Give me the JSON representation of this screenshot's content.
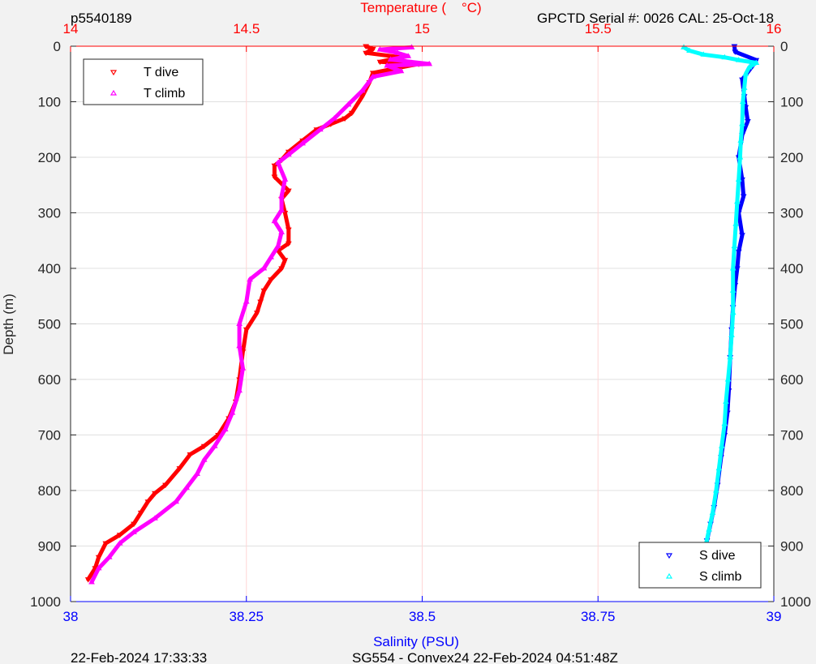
{
  "header": {
    "left_id": "p5540189",
    "top_axis_title": "Temperature (    °C)",
    "right_info": "GPCTD Serial #: 0026 CAL: 25-Oct-18"
  },
  "footer": {
    "bottom_left": "22-Feb-2024 17:33:33",
    "bottom_center": "SG554 - Convex24 22-Feb-2024 04:51:48Z"
  },
  "colors": {
    "temperature_axis": "#ff0000",
    "salinity_axis": "#0000ff",
    "t_dive": "#ff0000",
    "t_climb": "#ff00ff",
    "s_dive": "#0000ff",
    "s_climb": "#00ffff",
    "grid_temp": "#ffd6d6",
    "grid_depth": "#e0e0e0"
  },
  "chart_data": {
    "type": "line",
    "y_axis": {
      "label": "Depth (m)",
      "lim": [
        0,
        1000
      ],
      "reversed": true,
      "ticks": [
        0,
        100,
        200,
        300,
        400,
        500,
        600,
        700,
        800,
        900,
        1000
      ]
    },
    "x_top": {
      "label": "Temperature (    °C)",
      "lim": [
        14,
        16
      ],
      "ticks": [
        14,
        14.5,
        15,
        15.5,
        16
      ],
      "tick_labels": [
        "14",
        "14.5",
        "15",
        "15.5",
        "16"
      ]
    },
    "x_bottom": {
      "label": "Salinity (PSU)",
      "lim": [
        38,
        39
      ],
      "ticks": [
        38,
        38.25,
        38.5,
        38.75,
        39
      ],
      "tick_labels": [
        "38",
        "38.25",
        "38.5",
        "38.75",
        "39"
      ]
    },
    "grid": true,
    "legends": [
      {
        "placement": "top-left",
        "entries": [
          "T dive",
          "T climb"
        ]
      },
      {
        "placement": "bottom-right",
        "entries": [
          "S dive",
          "S climb"
        ]
      }
    ],
    "series": [
      {
        "name": "T dive",
        "axis": "temperature",
        "marker": "triangle-down",
        "points": [
          [
            14.84,
            0
          ],
          [
            14.86,
            5
          ],
          [
            14.84,
            12
          ],
          [
            14.94,
            20
          ],
          [
            14.88,
            28
          ],
          [
            14.99,
            32
          ],
          [
            14.94,
            38
          ],
          [
            14.86,
            48
          ],
          [
            14.85,
            65
          ],
          [
            14.83,
            90
          ],
          [
            14.8,
            120
          ],
          [
            14.78,
            130
          ],
          [
            14.74,
            140
          ],
          [
            14.7,
            150
          ],
          [
            14.66,
            170
          ],
          [
            14.62,
            190
          ],
          [
            14.6,
            205
          ],
          [
            14.58,
            215
          ],
          [
            14.58,
            235
          ],
          [
            14.62,
            260
          ],
          [
            14.6,
            275
          ],
          [
            14.61,
            300
          ],
          [
            14.62,
            330
          ],
          [
            14.62,
            355
          ],
          [
            14.59,
            368
          ],
          [
            14.61,
            385
          ],
          [
            14.6,
            400
          ],
          [
            14.57,
            420
          ],
          [
            14.55,
            440
          ],
          [
            14.54,
            460
          ],
          [
            14.53,
            480
          ],
          [
            14.5,
            510
          ],
          [
            14.49,
            550
          ],
          [
            14.48,
            600
          ],
          [
            14.47,
            640
          ],
          [
            14.45,
            670
          ],
          [
            14.42,
            700
          ],
          [
            14.38,
            720
          ],
          [
            14.34,
            735
          ],
          [
            14.31,
            760
          ],
          [
            14.27,
            790
          ],
          [
            14.24,
            805
          ],
          [
            14.22,
            820
          ],
          [
            14.2,
            840
          ],
          [
            14.18,
            860
          ],
          [
            14.14,
            880
          ],
          [
            14.1,
            895
          ],
          [
            14.08,
            920
          ],
          [
            14.07,
            940
          ],
          [
            14.05,
            960
          ]
        ]
      },
      {
        "name": "T climb",
        "axis": "temperature",
        "marker": "triangle-up",
        "points": [
          [
            14.06,
            965
          ],
          [
            14.08,
            940
          ],
          [
            14.11,
            920
          ],
          [
            14.14,
            895
          ],
          [
            14.18,
            875
          ],
          [
            14.24,
            850
          ],
          [
            14.3,
            820
          ],
          [
            14.33,
            795
          ],
          [
            14.36,
            770
          ],
          [
            14.38,
            745
          ],
          [
            14.41,
            720
          ],
          [
            14.44,
            690
          ],
          [
            14.46,
            660
          ],
          [
            14.48,
            620
          ],
          [
            14.49,
            580
          ],
          [
            14.48,
            540
          ],
          [
            14.48,
            500
          ],
          [
            14.5,
            460
          ],
          [
            14.51,
            420
          ],
          [
            14.55,
            400
          ],
          [
            14.57,
            380
          ],
          [
            14.59,
            360
          ],
          [
            14.6,
            335
          ],
          [
            14.58,
            315
          ],
          [
            14.6,
            295
          ],
          [
            14.6,
            270
          ],
          [
            14.61,
            240
          ],
          [
            14.59,
            210
          ],
          [
            14.62,
            195
          ],
          [
            14.66,
            175
          ],
          [
            14.71,
            150
          ],
          [
            14.75,
            130
          ],
          [
            14.79,
            105
          ],
          [
            14.83,
            80
          ],
          [
            14.86,
            55
          ],
          [
            14.94,
            45
          ],
          [
            14.9,
            35
          ],
          [
            15.02,
            32
          ],
          [
            14.91,
            24
          ],
          [
            14.96,
            18
          ],
          [
            14.93,
            12
          ],
          [
            14.88,
            6
          ],
          [
            14.97,
            2
          ]
        ]
      },
      {
        "name": "S dive",
        "axis": "salinity",
        "marker": "triangle-down",
        "points": [
          [
            38.944,
            0
          ],
          [
            38.945,
            10
          ],
          [
            38.975,
            25
          ],
          [
            38.97,
            35
          ],
          [
            38.955,
            60
          ],
          [
            38.958,
            90
          ],
          [
            38.96,
            110
          ],
          [
            38.963,
            135
          ],
          [
            38.955,
            160
          ],
          [
            38.95,
            200
          ],
          [
            38.955,
            240
          ],
          [
            38.957,
            270
          ],
          [
            38.95,
            300
          ],
          [
            38.955,
            340
          ],
          [
            38.95,
            370
          ],
          [
            38.948,
            400
          ],
          [
            38.945,
            430
          ],
          [
            38.942,
            470
          ],
          [
            38.94,
            510
          ],
          [
            38.938,
            560
          ],
          [
            38.936,
            620
          ],
          [
            38.934,
            660
          ],
          [
            38.93,
            700
          ],
          [
            38.925,
            740
          ],
          [
            38.92,
            790
          ],
          [
            38.915,
            830
          ],
          [
            38.91,
            860
          ],
          [
            38.905,
            890
          ],
          [
            38.9,
            920
          ],
          [
            38.895,
            950
          ],
          [
            38.893,
            960
          ]
        ]
      },
      {
        "name": "S climb",
        "axis": "salinity",
        "marker": "triangle-up",
        "points": [
          [
            38.893,
            965
          ],
          [
            38.898,
            930
          ],
          [
            38.903,
            900
          ],
          [
            38.908,
            870
          ],
          [
            38.913,
            840
          ],
          [
            38.918,
            800
          ],
          [
            38.922,
            760
          ],
          [
            38.926,
            720
          ],
          [
            38.93,
            680
          ],
          [
            38.932,
            640
          ],
          [
            38.935,
            600
          ],
          [
            38.938,
            560
          ],
          [
            38.94,
            520
          ],
          [
            38.942,
            480
          ],
          [
            38.942,
            440
          ],
          [
            38.942,
            400
          ],
          [
            38.944,
            360
          ],
          [
            38.946,
            320
          ],
          [
            38.948,
            280
          ],
          [
            38.95,
            240
          ],
          [
            38.952,
            200
          ],
          [
            38.953,
            170
          ],
          [
            38.955,
            140
          ],
          [
            38.956,
            100
          ],
          [
            38.958,
            75
          ],
          [
            38.96,
            50
          ],
          [
            38.965,
            38
          ],
          [
            38.975,
            30
          ],
          [
            38.95,
            25
          ],
          [
            38.93,
            20
          ],
          [
            38.9,
            15
          ],
          [
            38.88,
            8
          ],
          [
            38.872,
            2
          ]
        ]
      }
    ]
  }
}
